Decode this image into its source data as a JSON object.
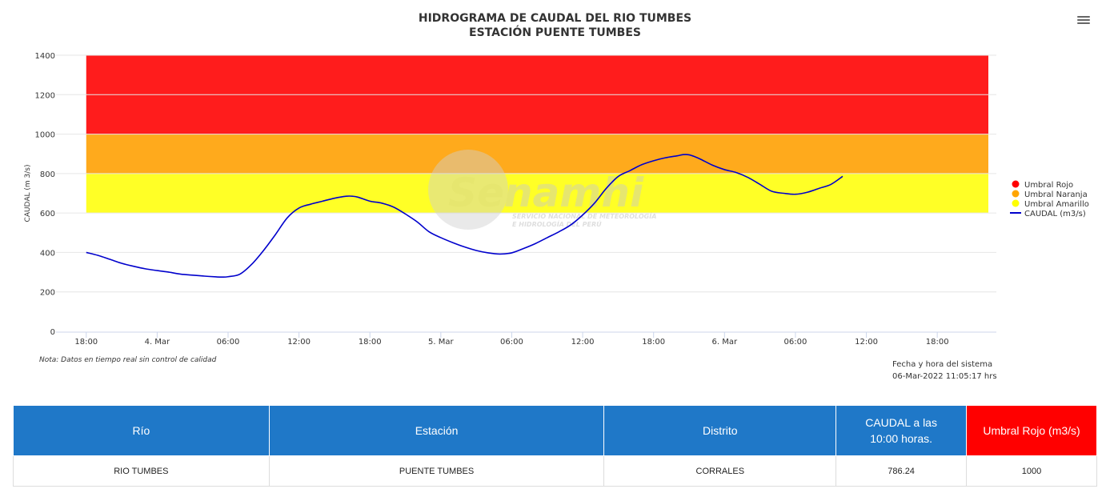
{
  "header": {
    "title_line1": "HIDROGRAMA DE CAUDAL DEL RIO TUMBES",
    "title_line2": "ESTACIÓN PUENTE TUMBES"
  },
  "note": "Nota: Datos en tiempo real sin control de calidad",
  "system_time": {
    "label": "Fecha y hora del sistema",
    "value": "06-Mar-2022 11:05:17 hrs"
  },
  "watermark": {
    "brand": "Senamhi",
    "line1": "SERVICIO NACIONAL DE METEOROLOGÍA",
    "line2": "E HIDROLOGÍA DEL PERÚ"
  },
  "chart_data": {
    "type": "line",
    "ylabel": "CAUDAL (m 3/s)",
    "ylim": [
      0,
      1400
    ],
    "yticks": [
      0,
      200,
      400,
      600,
      800,
      1000,
      1200,
      1400
    ],
    "xlim_hours": [
      -1,
      77
    ],
    "xticks": [
      {
        "h": 0,
        "label": "18:00"
      },
      {
        "h": 6,
        "label": "4. Mar"
      },
      {
        "h": 12,
        "label": "06:00"
      },
      {
        "h": 18,
        "label": "12:00"
      },
      {
        "h": 24,
        "label": "18:00"
      },
      {
        "h": 30,
        "label": "5. Mar"
      },
      {
        "h": 36,
        "label": "06:00"
      },
      {
        "h": 42,
        "label": "12:00"
      },
      {
        "h": 48,
        "label": "18:00"
      },
      {
        "h": 54,
        "label": "6. Mar"
      },
      {
        "h": 60,
        "label": "06:00"
      },
      {
        "h": 66,
        "label": "12:00"
      },
      {
        "h": 72,
        "label": "18:00"
      }
    ],
    "bands": [
      {
        "name": "Umbral Rojo",
        "from": 1000,
        "to": 1400,
        "color": "#ff1c1c",
        "x_from_h": 0,
        "x_to_h": 77
      },
      {
        "name": "Umbral Naranja",
        "from": 800,
        "to": 1000,
        "color": "#ffaa1c",
        "x_from_h": 0,
        "x_to_h": 77
      },
      {
        "name": "Umbral Amarillo",
        "from": 600,
        "to": 800,
        "color": "#ffff26",
        "x_from_h": 0,
        "x_to_h": 77
      }
    ],
    "legend": [
      {
        "name": "Umbral Rojo",
        "color": "#ff0000",
        "symbol": "circle"
      },
      {
        "name": "Umbral Naranja",
        "color": "#ffa500",
        "symbol": "circle"
      },
      {
        "name": "Umbral Amarillo",
        "color": "#ffff00",
        "symbol": "circle"
      },
      {
        "name": "CAUDAL (m3/s)",
        "color": "#0000cc",
        "symbol": "line"
      }
    ],
    "legend_position": "right",
    "series": [
      {
        "name": "CAUDAL (m3/s)",
        "color": "#0000cc",
        "x_hours": [
          0,
          1,
          2,
          3,
          4,
          5,
          6,
          7,
          8,
          9,
          10,
          11,
          11.5,
          12,
          13,
          14,
          15,
          16,
          17,
          18,
          19,
          20,
          21,
          22,
          22.5,
          23,
          24,
          25,
          26,
          27,
          28,
          29,
          30,
          31,
          32,
          33,
          34,
          35,
          36,
          37,
          38,
          39,
          40,
          41,
          42,
          43,
          44,
          45,
          46,
          47,
          48,
          49,
          50,
          50.5,
          51,
          51.5,
          52,
          53,
          54,
          55,
          56,
          57,
          58,
          59,
          60,
          61,
          62,
          63,
          64
        ],
        "values": [
          400,
          385,
          365,
          345,
          330,
          317,
          308,
          300,
          290,
          285,
          280,
          276,
          275,
          277,
          290,
          340,
          410,
          490,
          575,
          625,
          645,
          660,
          675,
          685,
          685,
          680,
          660,
          650,
          630,
          595,
          555,
          505,
          475,
          450,
          428,
          410,
          398,
          392,
          398,
          420,
          445,
          475,
          505,
          540,
          590,
          650,
          725,
          785,
          815,
          845,
          865,
          880,
          890,
          896,
          895,
          885,
          872,
          842,
          820,
          805,
          780,
          745,
          710,
          700,
          695,
          705,
          725,
          745,
          786
        ]
      }
    ]
  },
  "table": {
    "headers": {
      "rio": "Río",
      "estacion": "Estación",
      "distrito": "Distrito",
      "caudal_line1": "CAUDAL a las",
      "caudal_line2": "10:00 horas.",
      "umbral": "Umbral Rojo (m3/s)"
    },
    "row": {
      "rio": "RIO TUMBES",
      "estacion": "PUENTE TUMBES",
      "distrito": "CORRALES",
      "caudal": "786.24",
      "umbral": "1000"
    },
    "colors": {
      "header": "#1f78c8",
      "umbral_header": "#ff0000"
    }
  }
}
